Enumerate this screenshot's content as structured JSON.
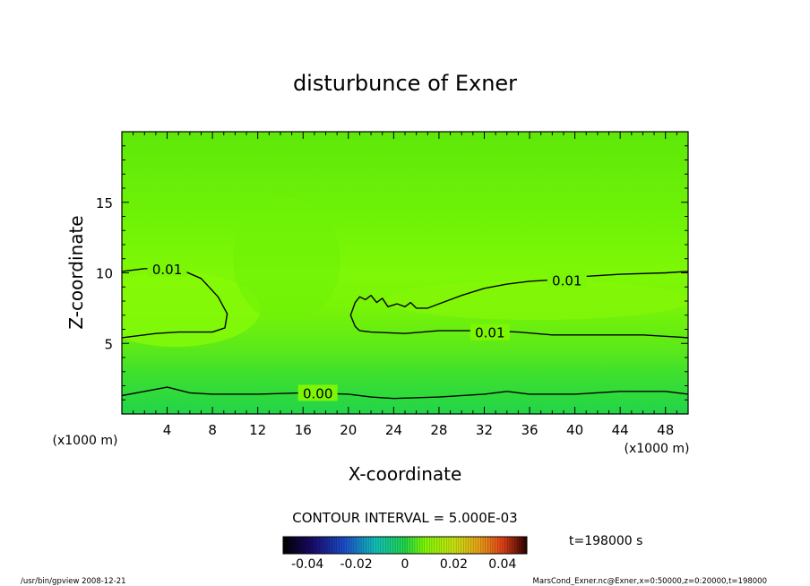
{
  "chart_data": {
    "type": "contour",
    "title": "disturbunce of Exner",
    "xlabel": "X-coordinate",
    "ylabel": "Z-coordinate",
    "x_unit_label": "(x1000 m)",
    "y_unit_label": "(x1000 m)",
    "xlim": [
      0,
      50
    ],
    "ylim": [
      0,
      20
    ],
    "x_ticks": [
      4,
      8,
      12,
      16,
      20,
      24,
      28,
      32,
      36,
      40,
      44,
      48
    ],
    "y_ticks": [
      5,
      10,
      15
    ],
    "contour_interval_text": "CONTOUR INTERVAL = 5.000E-03",
    "time_label": "t=198000 s",
    "colorbar": {
      "ticks": [
        "-0.04",
        "-0.02",
        "0",
        "0.02",
        "0.04"
      ],
      "range": [
        -0.05,
        0.05
      ]
    },
    "contours": [
      {
        "level": 0.0,
        "label": "0.00",
        "points": [
          [
            0,
            1.3
          ],
          [
            2,
            1.6
          ],
          [
            4,
            1.9
          ],
          [
            6,
            1.5
          ],
          [
            8,
            1.4
          ],
          [
            12,
            1.4
          ],
          [
            16,
            1.5
          ],
          [
            20,
            1.4
          ],
          [
            22,
            1.2
          ],
          [
            24,
            1.1
          ],
          [
            28,
            1.2
          ],
          [
            32,
            1.4
          ],
          [
            34,
            1.6
          ],
          [
            36,
            1.4
          ],
          [
            40,
            1.4
          ],
          [
            44,
            1.6
          ],
          [
            48,
            1.6
          ],
          [
            50,
            1.4
          ]
        ],
        "label_at": [
          17.3,
          1.5
        ]
      },
      {
        "level": 0.01,
        "label": "0.01",
        "points": [
          [
            0,
            10.1
          ],
          [
            2,
            10.3
          ],
          [
            5,
            10.3
          ],
          [
            7,
            9.6
          ],
          [
            8.5,
            8.3
          ],
          [
            9.3,
            7.1
          ],
          [
            9.1,
            6.1
          ],
          [
            8,
            5.8
          ],
          [
            5,
            5.8
          ],
          [
            3,
            5.7
          ],
          [
            0,
            5.4
          ]
        ],
        "label_at": [
          4,
          10.3
        ]
      },
      {
        "level": 0.01,
        "label": "0.01",
        "points": [
          [
            21,
            5.9
          ],
          [
            22,
            5.8
          ],
          [
            25,
            5.7
          ],
          [
            28,
            5.9
          ],
          [
            32,
            5.9
          ],
          [
            35,
            5.8
          ],
          [
            38,
            5.6
          ],
          [
            42,
            5.6
          ],
          [
            46,
            5.6
          ],
          [
            50,
            5.4
          ]
        ],
        "label_at": [
          32.5,
          5.8
        ]
      },
      {
        "level": 0.01,
        "label": "0.01",
        "points": [
          [
            21,
            5.9
          ],
          [
            20.6,
            6.2
          ],
          [
            20.2,
            7.0
          ],
          [
            20.6,
            7.9
          ],
          [
            21,
            8.3
          ],
          [
            21.5,
            8.1
          ],
          [
            22,
            8.4
          ],
          [
            22.5,
            7.9
          ],
          [
            23,
            8.2
          ],
          [
            23.5,
            7.6
          ],
          [
            24.3,
            7.8
          ],
          [
            25,
            7.6
          ],
          [
            25.5,
            7.9
          ],
          [
            26,
            7.5
          ],
          [
            27,
            7.5
          ],
          [
            28,
            7.8
          ],
          [
            30,
            8.4
          ],
          [
            32,
            8.9
          ],
          [
            34,
            9.2
          ],
          [
            36,
            9.4
          ],
          [
            38,
            9.5
          ],
          [
            40,
            9.7
          ],
          [
            44,
            9.9
          ],
          [
            48,
            10.0
          ],
          [
            50,
            10.1
          ]
        ],
        "label_at": [
          39.3,
          9.5
        ]
      }
    ]
  },
  "footer": {
    "left": "/usr/bin/gpview   2008-12-21",
    "right": "MarsCond_Exner.nc@Exner,x=0:50000,z=0:20000,t=198000"
  }
}
